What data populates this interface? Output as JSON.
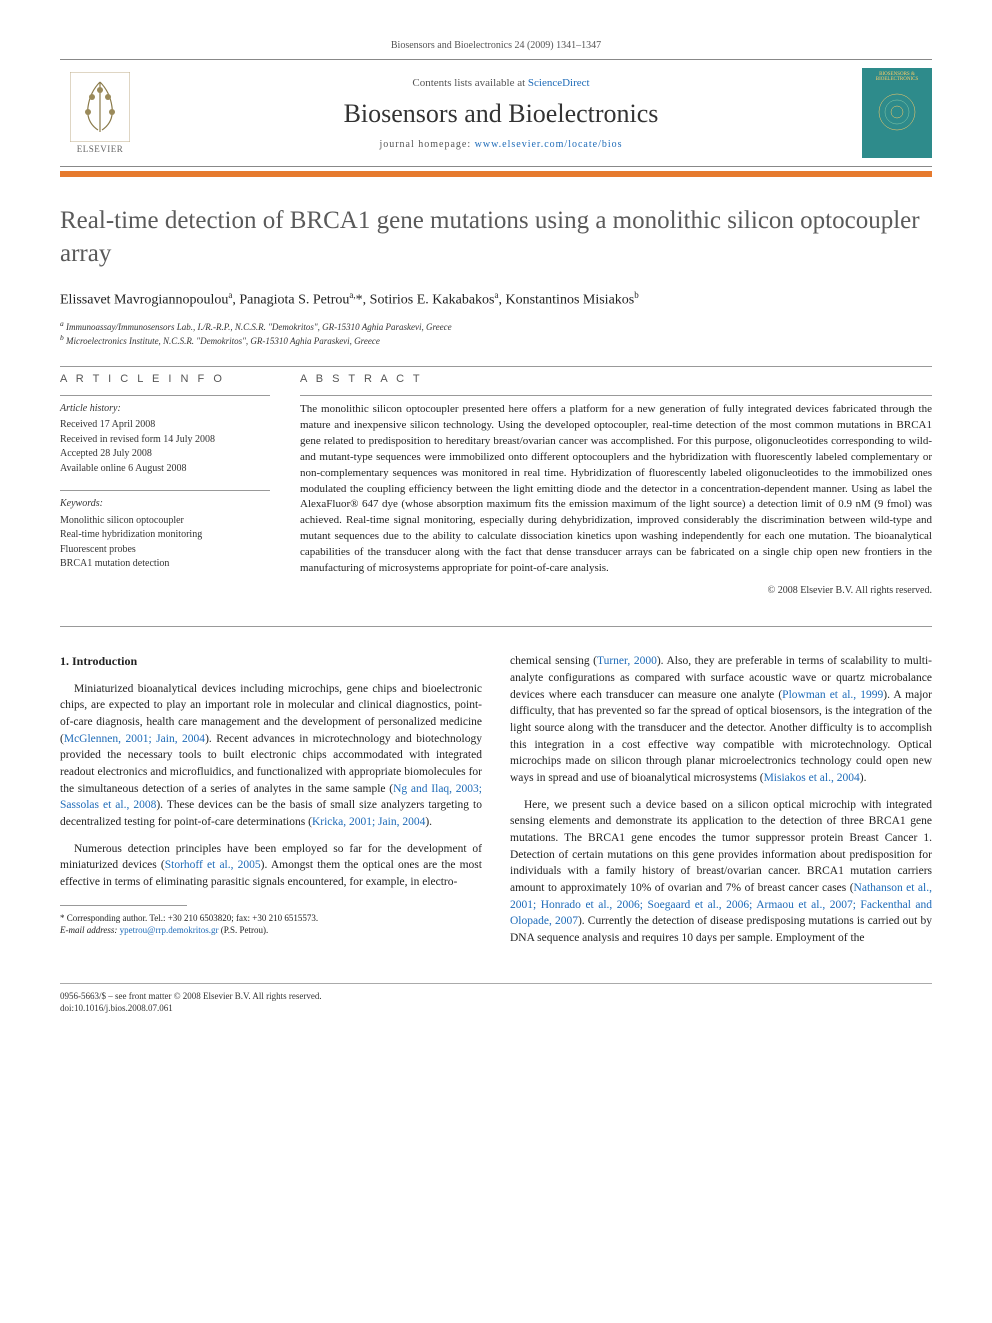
{
  "header": {
    "citation": "Biosensors and Bioelectronics 24 (2009) 1341–1347",
    "contents_prefix": "Contents lists available at ",
    "sciencedirect": "ScienceDirect",
    "journal_name": "Biosensors and Bioelectronics",
    "homepage_prefix": "journal homepage: ",
    "homepage_url": "www.elsevier.com/locate/bios",
    "elsevier_label": "ELSEVIER",
    "cover_title": "BIOSENSORS & BIOELECTRONICS"
  },
  "colors": {
    "orange_bar": "#e67a2e",
    "link": "#1e6bb8",
    "cover_bg": "#2e8b8b",
    "cover_text": "#ffcc66",
    "rule": "#999999",
    "body_text": "#222222",
    "muted": "#555555"
  },
  "article": {
    "title": "Real-time detection of BRCA1 gene mutations using a monolithic silicon optocoupler array",
    "authors_html": "Elissavet Mavrogiannopoulou<sup>a</sup>, Panagiota S. Petrou<sup>a,</sup>*, Sotirios E. Kakabakos<sup>a</sup>, Konstantinos Misiakos<sup>b</sup>",
    "affiliations": {
      "a": "Immunoassay/Immunosensors Lab., I./R.-R.P., N.C.S.R. \"Demokritos\", GR-15310 Aghia Paraskevi, Greece",
      "b": "Microelectronics Institute, N.C.S.R. \"Demokritos\", GR-15310 Aghia Paraskevi, Greece"
    }
  },
  "info": {
    "heading": "A R T I C L E   I N F O",
    "history_label": "Article history:",
    "history": [
      "Received 17 April 2008",
      "Received in revised form 14 July 2008",
      "Accepted 28 July 2008",
      "Available online 6 August 2008"
    ],
    "keywords_label": "Keywords:",
    "keywords": [
      "Monolithic silicon optocoupler",
      "Real-time hybridization monitoring",
      "Fluorescent probes",
      "BRCA1 mutation detection"
    ]
  },
  "abstract": {
    "heading": "A B S T R A C T",
    "body": "The monolithic silicon optocoupler presented here offers a platform for a new generation of fully integrated devices fabricated through the mature and inexpensive silicon technology. Using the developed optocoupler, real-time detection of the most common mutations in BRCA1 gene related to predisposition to hereditary breast/ovarian cancer was accomplished. For this purpose, oligonucleotides corresponding to wild- and mutant-type sequences were immobilized onto different optocouplers and the hybridization with fluorescently labeled complementary or non-complementary sequences was monitored in real time. Hybridization of fluorescently labeled oligonucleotides to the immobilized ones modulated the coupling efficiency between the light emitting diode and the detector in a concentration-dependent manner. Using as label the AlexaFluor® 647 dye (whose absorption maximum fits the emission maximum of the light source) a detection limit of 0.9 nM (9 fmol) was achieved. Real-time signal monitoring, especially during dehybridization, improved considerably the discrimination between wild-type and mutant sequences due to the ability to calculate dissociation kinetics upon washing independently for each one mutation. The bioanalytical capabilities of the transducer along with the fact that dense transducer arrays can be fabricated on a single chip open new frontiers in the manufacturing of microsystems appropriate for point-of-care analysis.",
    "copyright": "© 2008 Elsevier B.V. All rights reserved."
  },
  "sections": {
    "intro_heading": "1.  Introduction",
    "col1_p1_a": "Miniaturized bioanalytical devices including microchips, gene chips and bioelectronic chips, are expected to play an important role in molecular and clinical diagnostics, point-of-care diagnosis, health care management and the development of personalized medicine (",
    "col1_p1_cite1": "McGlennen, 2001; Jain, 2004",
    "col1_p1_b": "). Recent advances in microtechnology and biotechnology provided the necessary tools to built electronic chips accommodated with integrated readout electronics and microfluidics, and functionalized with appropriate biomolecules for the simultaneous detection of a series of analytes in the same sample (",
    "col1_p1_cite2": "Ng and Ilaq, 2003; Sassolas et al., 2008",
    "col1_p1_c": "). These devices can be the basis of small size analyzers targeting to decentralized testing for point-of-care determinations (",
    "col1_p1_cite3": "Kricka, 2001; Jain, 2004",
    "col1_p1_d": ").",
    "col1_p2_a": "Numerous detection principles have been employed so far for the development of miniaturized devices (",
    "col1_p2_cite1": "Storhoff et al., 2005",
    "col1_p2_b": "). Amongst them the optical ones are the most effective in terms of eliminating parasitic signals encountered, for example, in electro-",
    "col2_p1_a": "chemical sensing (",
    "col2_p1_cite1": "Turner, 2000",
    "col2_p1_b": "). Also, they are preferable in terms of scalability to multi-analyte configurations as compared with surface acoustic wave or quartz microbalance devices where each transducer can measure one analyte (",
    "col2_p1_cite2": "Plowman et al., 1999",
    "col2_p1_c": "). A major difficulty, that has prevented so far the spread of optical biosensors, is the integration of the light source along with the transducer and the detector. Another difficulty is to accomplish this integration in a cost effective way compatible with microtechnology. Optical microchips made on silicon through planar microelectronics technology could open new ways in spread and use of bioanalytical microsystems (",
    "col2_p1_cite3": "Misiakos et al., 2004",
    "col2_p1_d": ").",
    "col2_p2_a": "Here, we present such a device based on a silicon optical microchip with integrated sensing elements and demonstrate its application to the detection of three BRCA1 gene mutations. The BRCA1 gene encodes the tumor suppressor protein Breast Cancer 1. Detection of certain mutations on this gene provides information about predisposition for individuals with a family history of breast/ovarian cancer. BRCA1 mutation carriers amount to approximately 10% of ovarian and 7% of breast cancer cases (",
    "col2_p2_cite1": "Nathanson et al., 2001; Honrado et al., 2006; Soegaard et al., 2006; Armaou et al., 2007; Fackenthal and Olopade, 2007",
    "col2_p2_b": "). Currently the detection of disease predisposing mutations is carried out by DNA sequence analysis and requires 10 days per sample. Employment of the"
  },
  "footnote": {
    "corresponding": "* Corresponding author. Tel.: +30 210 6503820; fax: +30 210 6515573.",
    "email_label": "E-mail address: ",
    "email": "ypetrou@rrp.demokritos.gr",
    "email_suffix": " (P.S. Petrou)."
  },
  "footer": {
    "line1": "0956-5663/$ – see front matter © 2008 Elsevier B.V. All rights reserved.",
    "line2": "doi:10.1016/j.bios.2008.07.061"
  }
}
